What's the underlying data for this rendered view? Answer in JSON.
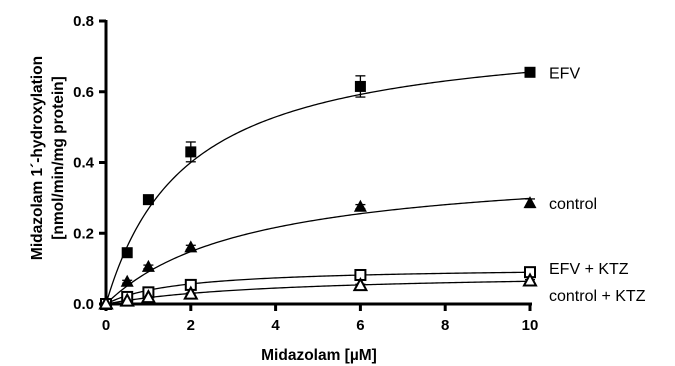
{
  "chart_data": {
    "type": "scatter",
    "title": "",
    "xlabel": "Midazolam [µM]",
    "ylabel_lines": [
      "Midazolam 1´-hydroxylation",
      "[nmol/min/mg protein]"
    ],
    "xlim": [
      0,
      10
    ],
    "ylim": [
      0,
      0.8
    ],
    "x_ticks": [
      0,
      2,
      4,
      6,
      8,
      10
    ],
    "y_ticks": [
      0.0,
      0.2,
      0.4,
      0.6,
      0.8
    ],
    "x_tick_labels": [
      "0",
      "2",
      "4",
      "6",
      "8",
      "10"
    ],
    "y_tick_labels": [
      "0.0",
      "0.2",
      "0.4",
      "0.6",
      "0.8"
    ],
    "grid": false,
    "legend": "none (series labeled directly at right end of curves)",
    "fit": "Michaelis-Menten curve",
    "series": [
      {
        "name": "EFV",
        "marker": "filled-square",
        "x": [
          0,
          0.5,
          1,
          2,
          6,
          10
        ],
        "y": [
          0.0,
          0.145,
          0.295,
          0.43,
          0.615,
          0.655
        ],
        "yerr": [
          0.0,
          0.01,
          0.012,
          0.028,
          0.03,
          0.006
        ],
        "fit_vmax": 0.78,
        "fit_km": 1.9
      },
      {
        "name": "control",
        "marker": "filled-triangle",
        "x": [
          0,
          0.5,
          1,
          2,
          6,
          10
        ],
        "y": [
          0.0,
          0.063,
          0.105,
          0.16,
          0.275,
          0.285
        ],
        "yerr": [
          0.0,
          0.004,
          0.005,
          0.006,
          0.006,
          0.012
        ],
        "fit_vmax": 0.4,
        "fit_km": 3.4
      },
      {
        "name": "EFV + KTZ",
        "marker": "open-square",
        "x": [
          0,
          0.5,
          1,
          2,
          6,
          10
        ],
        "y": [
          0.0,
          0.02,
          0.033,
          0.054,
          0.082,
          0.09
        ],
        "yerr": [
          0.0,
          0.003,
          0.004,
          0.004,
          0.005,
          0.005
        ],
        "fit_vmax": 0.105,
        "fit_km": 1.7
      },
      {
        "name": "control + KTZ",
        "marker": "open-triangle",
        "x": [
          0,
          0.5,
          1,
          2,
          6,
          10
        ],
        "y": [
          0.0,
          0.008,
          0.018,
          0.028,
          0.052,
          0.065
        ],
        "yerr": [
          0.0,
          0.002,
          0.003,
          0.003,
          0.004,
          0.004
        ],
        "fit_vmax": 0.09,
        "fit_km": 4.0
      }
    ]
  }
}
